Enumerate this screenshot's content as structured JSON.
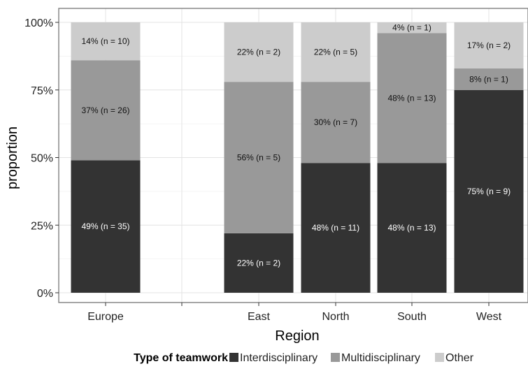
{
  "chart_data": {
    "type": "bar",
    "stacked": true,
    "categories": [
      "Europe",
      "",
      "East",
      "North",
      "South",
      "West"
    ],
    "xlabel": "Region",
    "ylabel": "proportion",
    "ylim": [
      0,
      1
    ],
    "yticks": [
      0,
      0.25,
      0.5,
      0.75,
      1.0
    ],
    "ytick_labels": [
      "0%",
      "25%",
      "50%",
      "75%",
      "100%"
    ],
    "grid": true,
    "legend": {
      "title": "Type of teamwork",
      "position": "bottom"
    },
    "series": [
      {
        "name": "Interdisciplinary",
        "color": "#333333",
        "values": [
          0.49,
          null,
          0.22,
          0.48,
          0.48,
          0.75
        ],
        "labels": [
          "49% (n = 35)",
          "",
          "22% (n = 2)",
          "48% (n = 11)",
          "48% (n = 13)",
          "75% (n = 9)"
        ]
      },
      {
        "name": "Multidisciplinary",
        "color": "#999999",
        "values": [
          0.37,
          null,
          0.56,
          0.3,
          0.48,
          0.08
        ],
        "labels": [
          "37% (n = 26)",
          "",
          "56% (n = 5)",
          "30% (n = 7)",
          "48% (n = 13)",
          "8% (n = 1)"
        ]
      },
      {
        "name": "Other",
        "color": "#cccccc",
        "values": [
          0.14,
          null,
          0.22,
          0.22,
          0.04,
          0.17
        ],
        "labels": [
          "14% (n = 10)",
          "",
          "22% (n = 2)",
          "22% (n = 5)",
          "4% (n = 1)",
          "17% (n = 2)"
        ]
      }
    ]
  }
}
